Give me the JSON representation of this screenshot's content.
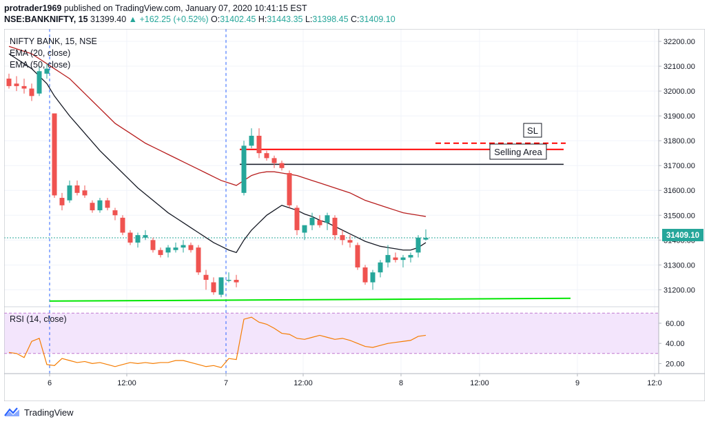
{
  "header": {
    "author": "protrader1969",
    "published": " published on TradingView.com, January 07, 2020 10:41:15 EST",
    "symbol_line": "NSE:BANKNIFTY, 15",
    "price": " 31399.40",
    "change": " ▲ +162.25 (+0.52%)",
    "o_label": " O:",
    "o": "31402.45",
    "h_label": " H:",
    "h": "31443.35",
    "l_label": " L:",
    "l": "31398.45",
    "c_label": " C:",
    "c": "31409.10"
  },
  "legend": {
    "title": "NIFTY BANK, 15, NSE",
    "ema20": "EMA (20, close)",
    "ema50": "EMA (50, close)",
    "rsi": "RSI (14, close)"
  },
  "annotations": {
    "sl": "SL",
    "selling_area": "Selling Area",
    "last_price": "31409.10"
  },
  "footer": {
    "brand": "TradingView"
  },
  "colors": {
    "up": "#26a69a",
    "down": "#ef5350",
    "ema20": "#131722",
    "ema50": "#b71c1c",
    "rsi": "#f57c00",
    "rsi_band": "#f3e5fc",
    "support": "#00e600",
    "resistance": "#ff0000"
  },
  "chart_data": [
    {
      "type": "candlestick",
      "title": "NIFTY BANK, 15, NSE",
      "ylim": [
        31140,
        32250
      ],
      "y_ticks": [
        31200,
        31300,
        31400,
        31500,
        31600,
        31700,
        31800,
        31900,
        32000,
        32100,
        32200
      ],
      "y_tick_labels": [
        "31200.00",
        "31300.00",
        "31400.00",
        "31500.00",
        "31600.00",
        "31700.00",
        "31800.00",
        "31900.00",
        "32000.00",
        "32100.00",
        "32200.00"
      ],
      "x_tick_labels": [
        "6",
        "12:00",
        "7",
        "12:00",
        "8",
        "12:00",
        "9",
        "12:0"
      ],
      "candles": [
        [
          32050,
          32070,
          32010,
          32020
        ],
        [
          32030,
          32060,
          32000,
          32020
        ],
        [
          32020,
          32050,
          31990,
          32010
        ],
        [
          32010,
          32030,
          31960,
          31980
        ],
        [
          31990,
          32100,
          31980,
          32080
        ],
        [
          32070,
          32110,
          32050,
          32090
        ],
        [
          31910,
          31910,
          31570,
          31580
        ],
        [
          31570,
          31590,
          31520,
          31540
        ],
        [
          31560,
          31640,
          31550,
          31620
        ],
        [
          31620,
          31640,
          31580,
          31590
        ],
        [
          31600,
          31620,
          31570,
          31580
        ],
        [
          31550,
          31560,
          31510,
          31520
        ],
        [
          31520,
          31570,
          31510,
          31560
        ],
        [
          31560,
          31570,
          31520,
          31530
        ],
        [
          31520,
          31530,
          31480,
          31500
        ],
        [
          31490,
          31500,
          31420,
          31430
        ],
        [
          31430,
          31440,
          31380,
          31390
        ],
        [
          31390,
          31430,
          31370,
          31420
        ],
        [
          31410,
          31440,
          31400,
          31420
        ],
        [
          31400,
          31410,
          31350,
          31360
        ],
        [
          31360,
          31370,
          31330,
          31340
        ],
        [
          31350,
          31380,
          31330,
          31370
        ],
        [
          31360,
          31390,
          31350,
          31370
        ],
        [
          31370,
          31400,
          31350,
          31380
        ],
        [
          31380,
          31390,
          31350,
          31360
        ],
        [
          31370,
          31380,
          31260,
          31270
        ],
        [
          31260,
          31280,
          31200,
          31240
        ],
        [
          31230,
          31250,
          31180,
          31190
        ],
        [
          31180,
          31250,
          31170,
          31250
        ],
        [
          31240,
          31270,
          31230,
          31240
        ],
        [
          31240,
          31260,
          31210,
          31230
        ],
        [
          31590,
          31800,
          31580,
          31780
        ],
        [
          31780,
          31850,
          31770,
          31820
        ],
        [
          31820,
          31850,
          31730,
          31750
        ],
        [
          31750,
          31760,
          31720,
          31730
        ],
        [
          31730,
          31740,
          31690,
          31710
        ],
        [
          31710,
          31720,
          31680,
          31690
        ],
        [
          31670,
          31680,
          31530,
          31540
        ],
        [
          31530,
          31540,
          31420,
          31440
        ],
        [
          31430,
          31450,
          31400,
          31460
        ],
        [
          31460,
          31510,
          31440,
          31490
        ],
        [
          31480,
          31500,
          31450,
          31460
        ],
        [
          31470,
          31510,
          31440,
          31500
        ],
        [
          31490,
          31500,
          31400,
          31420
        ],
        [
          31420,
          31440,
          31380,
          31400
        ],
        [
          31400,
          31420,
          31370,
          31390
        ],
        [
          31380,
          31390,
          31280,
          31290
        ],
        [
          31290,
          31300,
          31220,
          31230
        ],
        [
          31230,
          31280,
          31200,
          31270
        ],
        [
          31270,
          31320,
          31250,
          31310
        ],
        [
          31310,
          31380,
          31290,
          31340
        ],
        [
          31330,
          31350,
          31310,
          31320
        ],
        [
          31320,
          31340,
          31290,
          31330
        ],
        [
          31330,
          31350,
          31310,
          31340
        ],
        [
          31350,
          31420,
          31330,
          31410
        ],
        [
          31402,
          31443,
          31398,
          31409
        ]
      ],
      "ema20": [
        32150,
        32130,
        32110,
        32090,
        32060,
        32030,
        31980,
        31940,
        31900,
        31865,
        31830,
        31795,
        31760,
        31730,
        31700,
        31670,
        31640,
        31610,
        31585,
        31560,
        31535,
        31510,
        31490,
        31470,
        31450,
        31430,
        31410,
        31390,
        31375,
        31360,
        31350,
        31400,
        31440,
        31470,
        31500,
        31520,
        31540,
        31530,
        31520,
        31505,
        31495,
        31480,
        31470,
        31455,
        31440,
        31425,
        31410,
        31395,
        31385,
        31375,
        31370,
        31365,
        31360,
        31360,
        31370,
        31390
      ],
      "ema50": [
        32180,
        32170,
        32160,
        32150,
        32130,
        32110,
        32090,
        32070,
        32050,
        32020,
        31990,
        31960,
        31930,
        31900,
        31870,
        31850,
        31830,
        31810,
        31790,
        31775,
        31760,
        31745,
        31730,
        31715,
        31700,
        31685,
        31670,
        31655,
        31640,
        31630,
        31620,
        31640,
        31660,
        31670,
        31675,
        31675,
        31670,
        31665,
        31660,
        31650,
        31640,
        31630,
        31620,
        31610,
        31600,
        31590,
        31575,
        31560,
        31550,
        31540,
        31530,
        31520,
        31510,
        31505,
        31500,
        31495
      ],
      "lines": [
        {
          "name": "SL",
          "value": 31790,
          "style": "dashed",
          "color": "#ff0000"
        },
        {
          "name": "Selling Area top",
          "value": 31765,
          "style": "solid",
          "color": "#ff0000"
        },
        {
          "name": "Selling Area bottom",
          "value": 31705,
          "style": "solid",
          "color": "#131722"
        },
        {
          "name": "support",
          "value": 31160,
          "style": "solid",
          "color": "#00e600"
        }
      ]
    },
    {
      "type": "line",
      "title": "RSI (14, close)",
      "ylim": [
        10,
        75
      ],
      "y_ticks": [
        20,
        40,
        60
      ],
      "y_tick_labels": [
        "20.00",
        "40.00",
        "60.00"
      ],
      "bands": [
        30,
        70
      ],
      "values": [
        31,
        30,
        26,
        42,
        45,
        19,
        18,
        25,
        23,
        21,
        22,
        20,
        21,
        19,
        17,
        19,
        21,
        20,
        21,
        20,
        21,
        21,
        23,
        23,
        21,
        19,
        17,
        18,
        16,
        25,
        24,
        64,
        66,
        61,
        59,
        55,
        50,
        49,
        45,
        44,
        46,
        48,
        46,
        44,
        45,
        43,
        40,
        37,
        36,
        38,
        40,
        41,
        42,
        43,
        47,
        48
      ]
    }
  ]
}
